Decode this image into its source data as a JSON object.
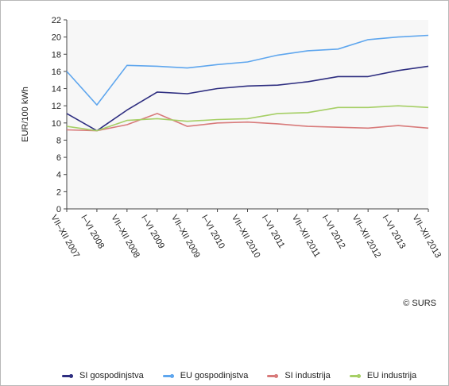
{
  "chart_data": {
    "type": "line",
    "title": "",
    "xlabel": "",
    "ylabel": "EUR/100 kWh",
    "ylim": [
      0,
      22
    ],
    "yticks": [
      0,
      2,
      4,
      6,
      8,
      10,
      12,
      14,
      16,
      18,
      20,
      22
    ],
    "grid": false,
    "legend_position": "bottom",
    "categories": [
      "VII–XII 2007",
      "I–VI 2008",
      "VII–XII 2008",
      "I–VI 2009",
      "VII–XII 2009",
      "I–VI 2010",
      "VII–XII 2010",
      "I–VI 2011",
      "VII–XII 2011",
      "I–VI 2012",
      "VII–XII 2012",
      "I–VI 2013",
      "VII–XII 2013"
    ],
    "series": [
      {
        "name": "SI gospodinjstva",
        "color": "#2e2e80",
        "values": [
          11.1,
          9.1,
          11.5,
          13.6,
          13.4,
          14.0,
          14.3,
          14.4,
          14.8,
          15.4,
          15.4,
          16.1,
          16.6
        ]
      },
      {
        "name": "EU gospodinjstva",
        "color": "#5ea6ee",
        "values": [
          16.0,
          12.1,
          16.7,
          16.6,
          16.4,
          16.8,
          17.1,
          17.9,
          18.4,
          18.6,
          19.7,
          20.0,
          20.2
        ]
      },
      {
        "name": "SI industrija",
        "color": "#d87a7a",
        "values": [
          9.2,
          9.1,
          9.8,
          11.1,
          9.6,
          10.0,
          10.1,
          9.9,
          9.6,
          9.5,
          9.4,
          9.7,
          9.4
        ]
      },
      {
        "name": "EU industrija",
        "color": "#a6cf66",
        "values": [
          9.6,
          9.1,
          10.3,
          10.5,
          10.2,
          10.4,
          10.5,
          11.1,
          11.2,
          11.8,
          11.8,
          12.0,
          11.8
        ]
      }
    ]
  },
  "credit": "© SURS"
}
